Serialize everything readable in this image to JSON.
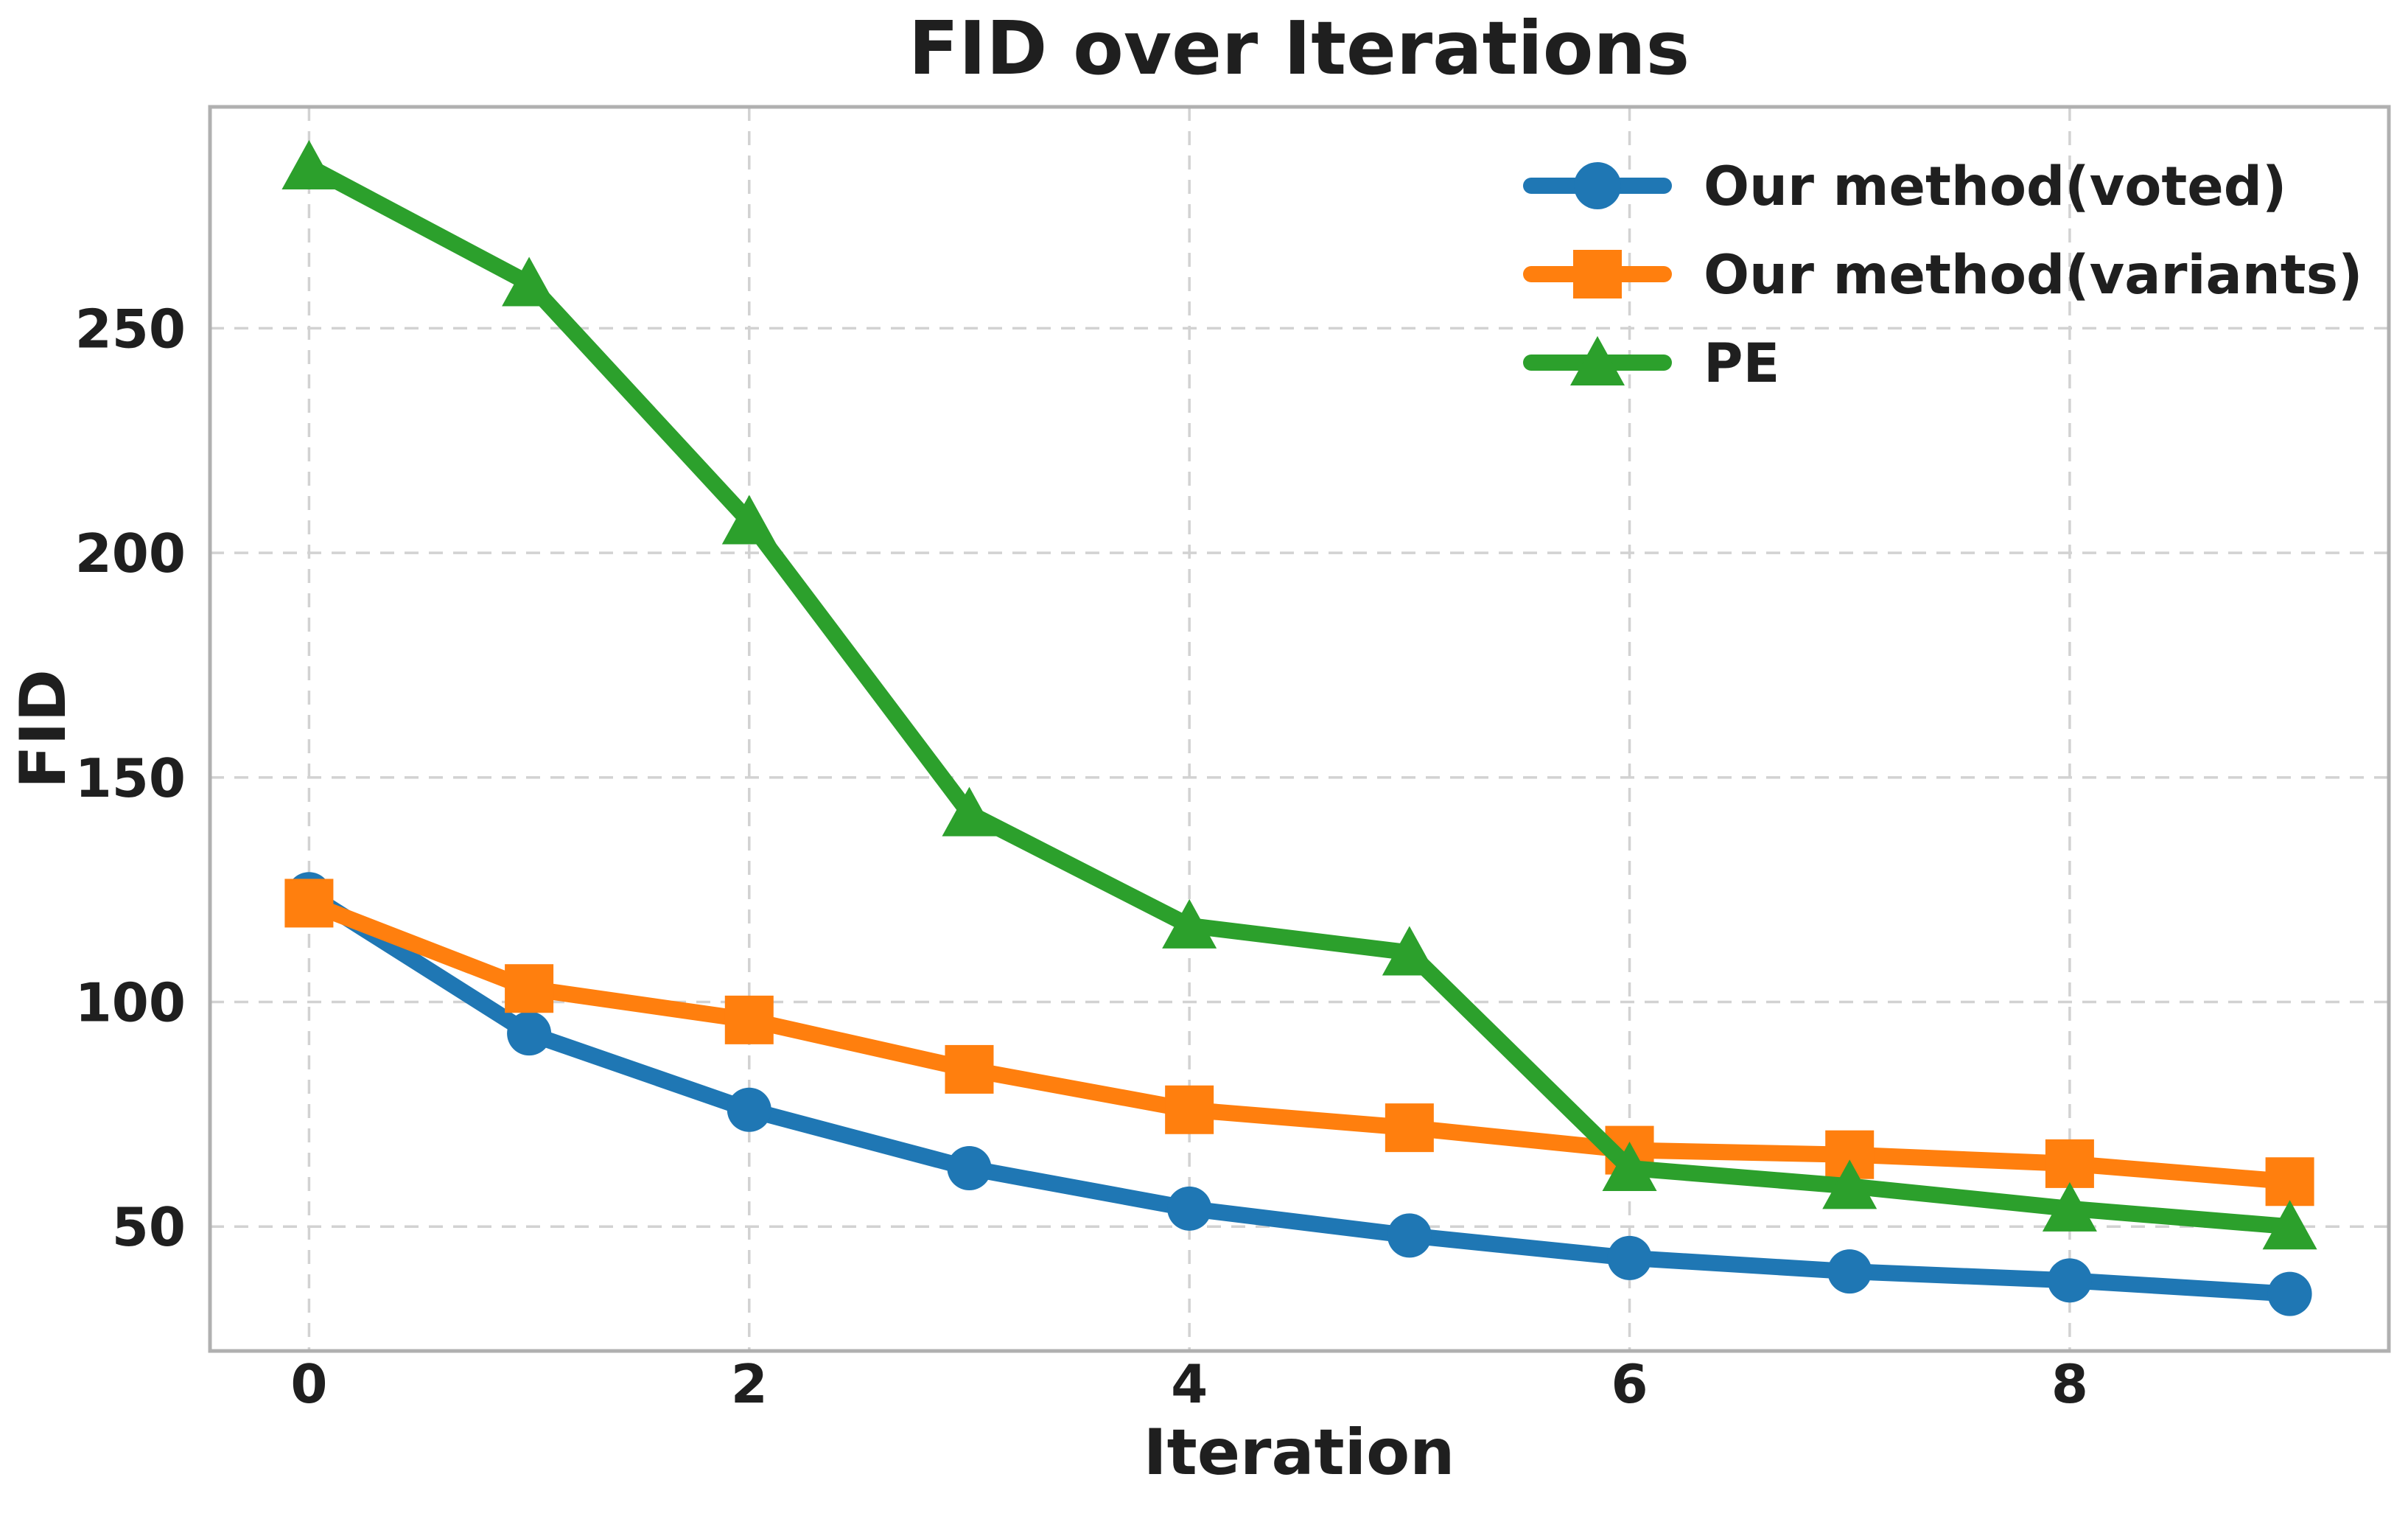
{
  "title": "FID over Iterations",
  "axes": {
    "xlabel": "Iteration",
    "ylabel": "FID",
    "x_tick_labels": [
      "0",
      "2",
      "4",
      "6",
      "8"
    ],
    "y_tick_labels": [
      "50",
      "100",
      "150",
      "200",
      "250"
    ]
  },
  "legend": {
    "items": [
      {
        "label": "Our method(voted)",
        "marker": "circle",
        "color": "#1f77b4"
      },
      {
        "label": "Our method(variants)",
        "marker": "square",
        "color": "#ff7f0e"
      },
      {
        "label": "PE",
        "marker": "triangle",
        "color": "#2ca02c"
      }
    ],
    "position": "upper right",
    "frame": false
  },
  "chart_data": {
    "type": "line",
    "title": "FID over Iterations",
    "xlabel": "Iteration",
    "ylabel": "FID",
    "x": [
      0,
      1,
      2,
      3,
      4,
      5,
      6,
      7,
      8,
      9
    ],
    "x_ticks": [
      0,
      2,
      4,
      6,
      8
    ],
    "y_ticks": [
      50,
      100,
      150,
      200,
      250
    ],
    "xlim": [
      -0.45,
      9.45
    ],
    "ylim": [
      22.3,
      299.3
    ],
    "grid": true,
    "grid_style": "dashed",
    "legend_position": "upper right",
    "series": [
      {
        "name": "Our method(voted)",
        "color": "#1f77b4",
        "marker": "circle",
        "values": [
          124,
          93,
          76,
          63,
          54,
          48,
          43,
          40,
          38,
          35
        ]
      },
      {
        "name": "Our method(variants)",
        "color": "#ff7f0e",
        "marker": "square",
        "values": [
          122,
          103,
          96,
          85,
          76,
          72,
          67,
          66,
          64,
          60
        ]
      },
      {
        "name": "PE",
        "color": "#2ca02c",
        "marker": "triangle",
        "values": [
          286,
          260,
          207,
          142,
          117,
          111,
          63,
          59,
          54,
          50
        ]
      }
    ]
  },
  "colors": {
    "background": "#ffffff",
    "grid": "#d2d2d2",
    "spine": "#b0b0b0",
    "text": "#1f1f1f"
  }
}
